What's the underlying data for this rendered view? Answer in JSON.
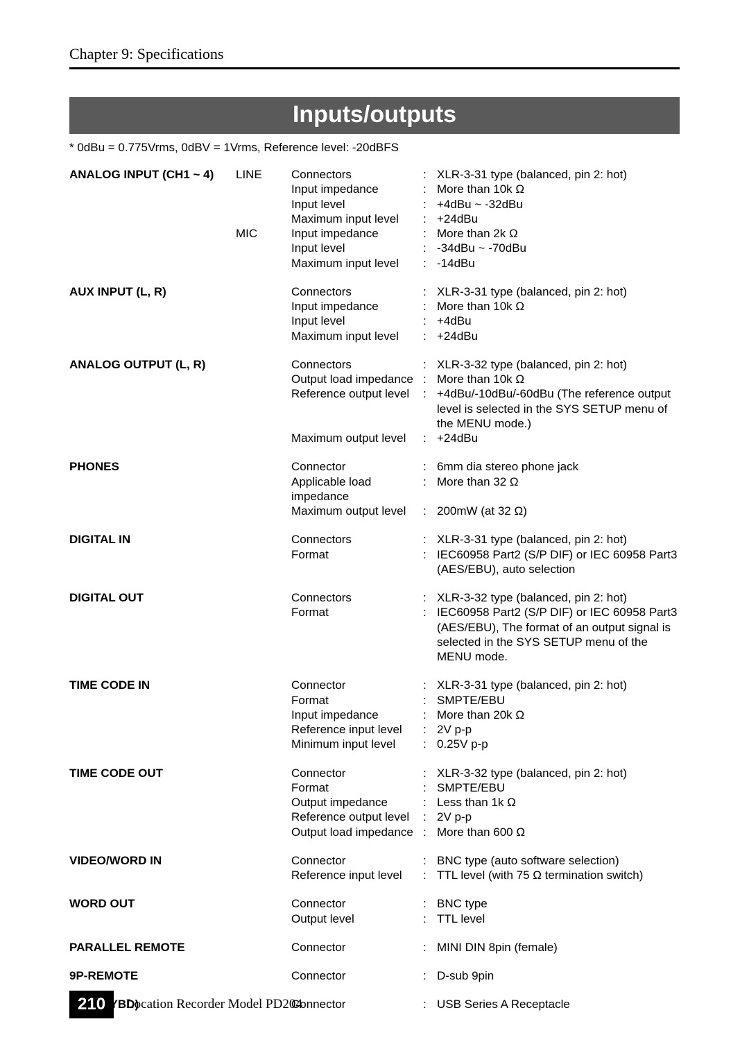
{
  "chapter_title": "Chapter 9: Specifications",
  "banner": "Inputs/outputs",
  "note": "* 0dBu = 0.775Vrms, 0dBV = 1Vrms, Reference level: -20dBFS",
  "page_number": "210",
  "footer_text": "Location Recorder  Model PD204",
  "colors": {
    "banner_bg": "#5a5a5a",
    "banner_text": "#ffffff",
    "text": "#000000",
    "page_num_bg": "#000000",
    "page_num_text": "#ffffff"
  },
  "typography": {
    "body_font": "Arial",
    "serif_font": "Times New Roman",
    "body_size_pt": 12,
    "banner_size_pt": 24,
    "chapter_size_pt": 16
  },
  "sections": [
    {
      "title": "ANALOG INPUT (CH1 ~ 4)",
      "rows": [
        {
          "sub": "LINE",
          "param": "Connectors",
          "value": "XLR-3-31 type (balanced, pin 2: hot)"
        },
        {
          "sub": "",
          "param": "Input impedance",
          "value": "More than 10k Ω"
        },
        {
          "sub": "",
          "param": "Input level",
          "value": "+4dBu ~ -32dBu"
        },
        {
          "sub": "",
          "param": "Maximum input level",
          "value": "+24dBu"
        },
        {
          "sub": "MIC",
          "param": "Input impedance",
          "value": "More than 2k Ω"
        },
        {
          "sub": "",
          "param": "Input level",
          "value": "-34dBu ~ -70dBu"
        },
        {
          "sub": "",
          "param": "Maximum input level",
          "value": "-14dBu"
        }
      ]
    },
    {
      "title": "AUX INPUT (L, R)",
      "rows": [
        {
          "sub": "",
          "param": "Connectors",
          "value": "XLR-3-31 type (balanced, pin 2: hot)"
        },
        {
          "sub": "",
          "param": "Input impedance",
          "value": "More than 10k Ω"
        },
        {
          "sub": "",
          "param": "Input level",
          "value": "+4dBu"
        },
        {
          "sub": "",
          "param": "Maximum input level",
          "value": "+24dBu"
        }
      ]
    },
    {
      "title": "ANALOG OUTPUT (L, R)",
      "rows": [
        {
          "sub": "",
          "param": "Connectors",
          "value": "XLR-3-32 type (balanced, pin 2: hot)"
        },
        {
          "sub": "",
          "param": "Output load impedance",
          "value": "More than 10k Ω"
        },
        {
          "sub": "",
          "param": "Reference output level",
          "value": "+4dBu/-10dBu/-60dBu (The reference output level is selected in the SYS SETUP menu of the MENU mode.)"
        },
        {
          "sub": "",
          "param": "Maximum output level",
          "value": "+24dBu"
        }
      ]
    },
    {
      "title": "PHONES",
      "rows": [
        {
          "sub": "",
          "param": "Connector",
          "value": "6mm dia stereo phone jack"
        },
        {
          "sub": "",
          "param": "Applicable load impedance",
          "value": "More than 32 Ω"
        },
        {
          "sub": "",
          "param": "Maximum output level",
          "value": "200mW (at 32 Ω)"
        }
      ]
    },
    {
      "title": "DIGITAL IN",
      "rows": [
        {
          "sub": "",
          "param": "Connectors",
          "value": "XLR-3-31 type (balanced, pin 2: hot)"
        },
        {
          "sub": "",
          "param": "Format",
          "value": "IEC60958 Part2 (S/P DIF) or IEC 60958 Part3 (AES/EBU), auto selection"
        }
      ]
    },
    {
      "title": "DIGITAL OUT",
      "rows": [
        {
          "sub": "",
          "param": "Connectors",
          "value": "XLR-3-32 type (balanced, pin 2: hot)"
        },
        {
          "sub": "",
          "param": "Format",
          "value": "IEC60958 Part2 (S/P DIF) or IEC 60958 Part3 (AES/EBU), The format of an output signal is selected in the SYS SETUP menu of the MENU mode."
        }
      ]
    },
    {
      "title": "TIME CODE IN",
      "rows": [
        {
          "sub": "",
          "param": "Connector",
          "value": "XLR-3-31 type (balanced, pin 2: hot)"
        },
        {
          "sub": "",
          "param": "Format",
          "value": "SMPTE/EBU"
        },
        {
          "sub": "",
          "param": "Input impedance",
          "value": "More than 20k Ω"
        },
        {
          "sub": "",
          "param": "Reference input level",
          "value": "2V p-p"
        },
        {
          "sub": "",
          "param": "Minimum input level",
          "value": "0.25V p-p"
        }
      ]
    },
    {
      "title": "TIME CODE OUT",
      "rows": [
        {
          "sub": "",
          "param": "Connector",
          "value": "XLR-3-32 type (balanced, pin 2: hot)"
        },
        {
          "sub": "",
          "param": "Format",
          "value": "SMPTE/EBU"
        },
        {
          "sub": "",
          "param": "Output impedance",
          "value": "Less than 1k Ω"
        },
        {
          "sub": "",
          "param": "Reference output level",
          "value": "2V p-p"
        },
        {
          "sub": "",
          "param": "Output load impedance",
          "value": "More than 600 Ω"
        }
      ]
    },
    {
      "title": "VIDEO/WORD IN",
      "rows": [
        {
          "sub": "",
          "param": "Connector",
          "value": "BNC type (auto software selection)"
        },
        {
          "sub": "",
          "param": "Reference input level",
          "value": "TTL level (with 75 Ω termination switch)"
        }
      ]
    },
    {
      "title": "WORD OUT",
      "rows": [
        {
          "sub": "",
          "param": "Connector",
          "value": "BNC type"
        },
        {
          "sub": "",
          "param": "Output level",
          "value": "TTL level"
        }
      ]
    },
    {
      "title": "PARALLEL REMOTE",
      "rows": [
        {
          "sub": "",
          "param": "Connector",
          "value": "MINI DIN 8pin (female)"
        }
      ]
    },
    {
      "title": "9P-REMOTE",
      "rows": [
        {
          "sub": "",
          "param": "Connector",
          "value": "D-sub 9pin"
        }
      ]
    },
    {
      "title": "USB (KYBD)",
      "rows": [
        {
          "sub": "",
          "param": "Connector",
          "value": "USB Series A Receptacle"
        }
      ]
    }
  ]
}
